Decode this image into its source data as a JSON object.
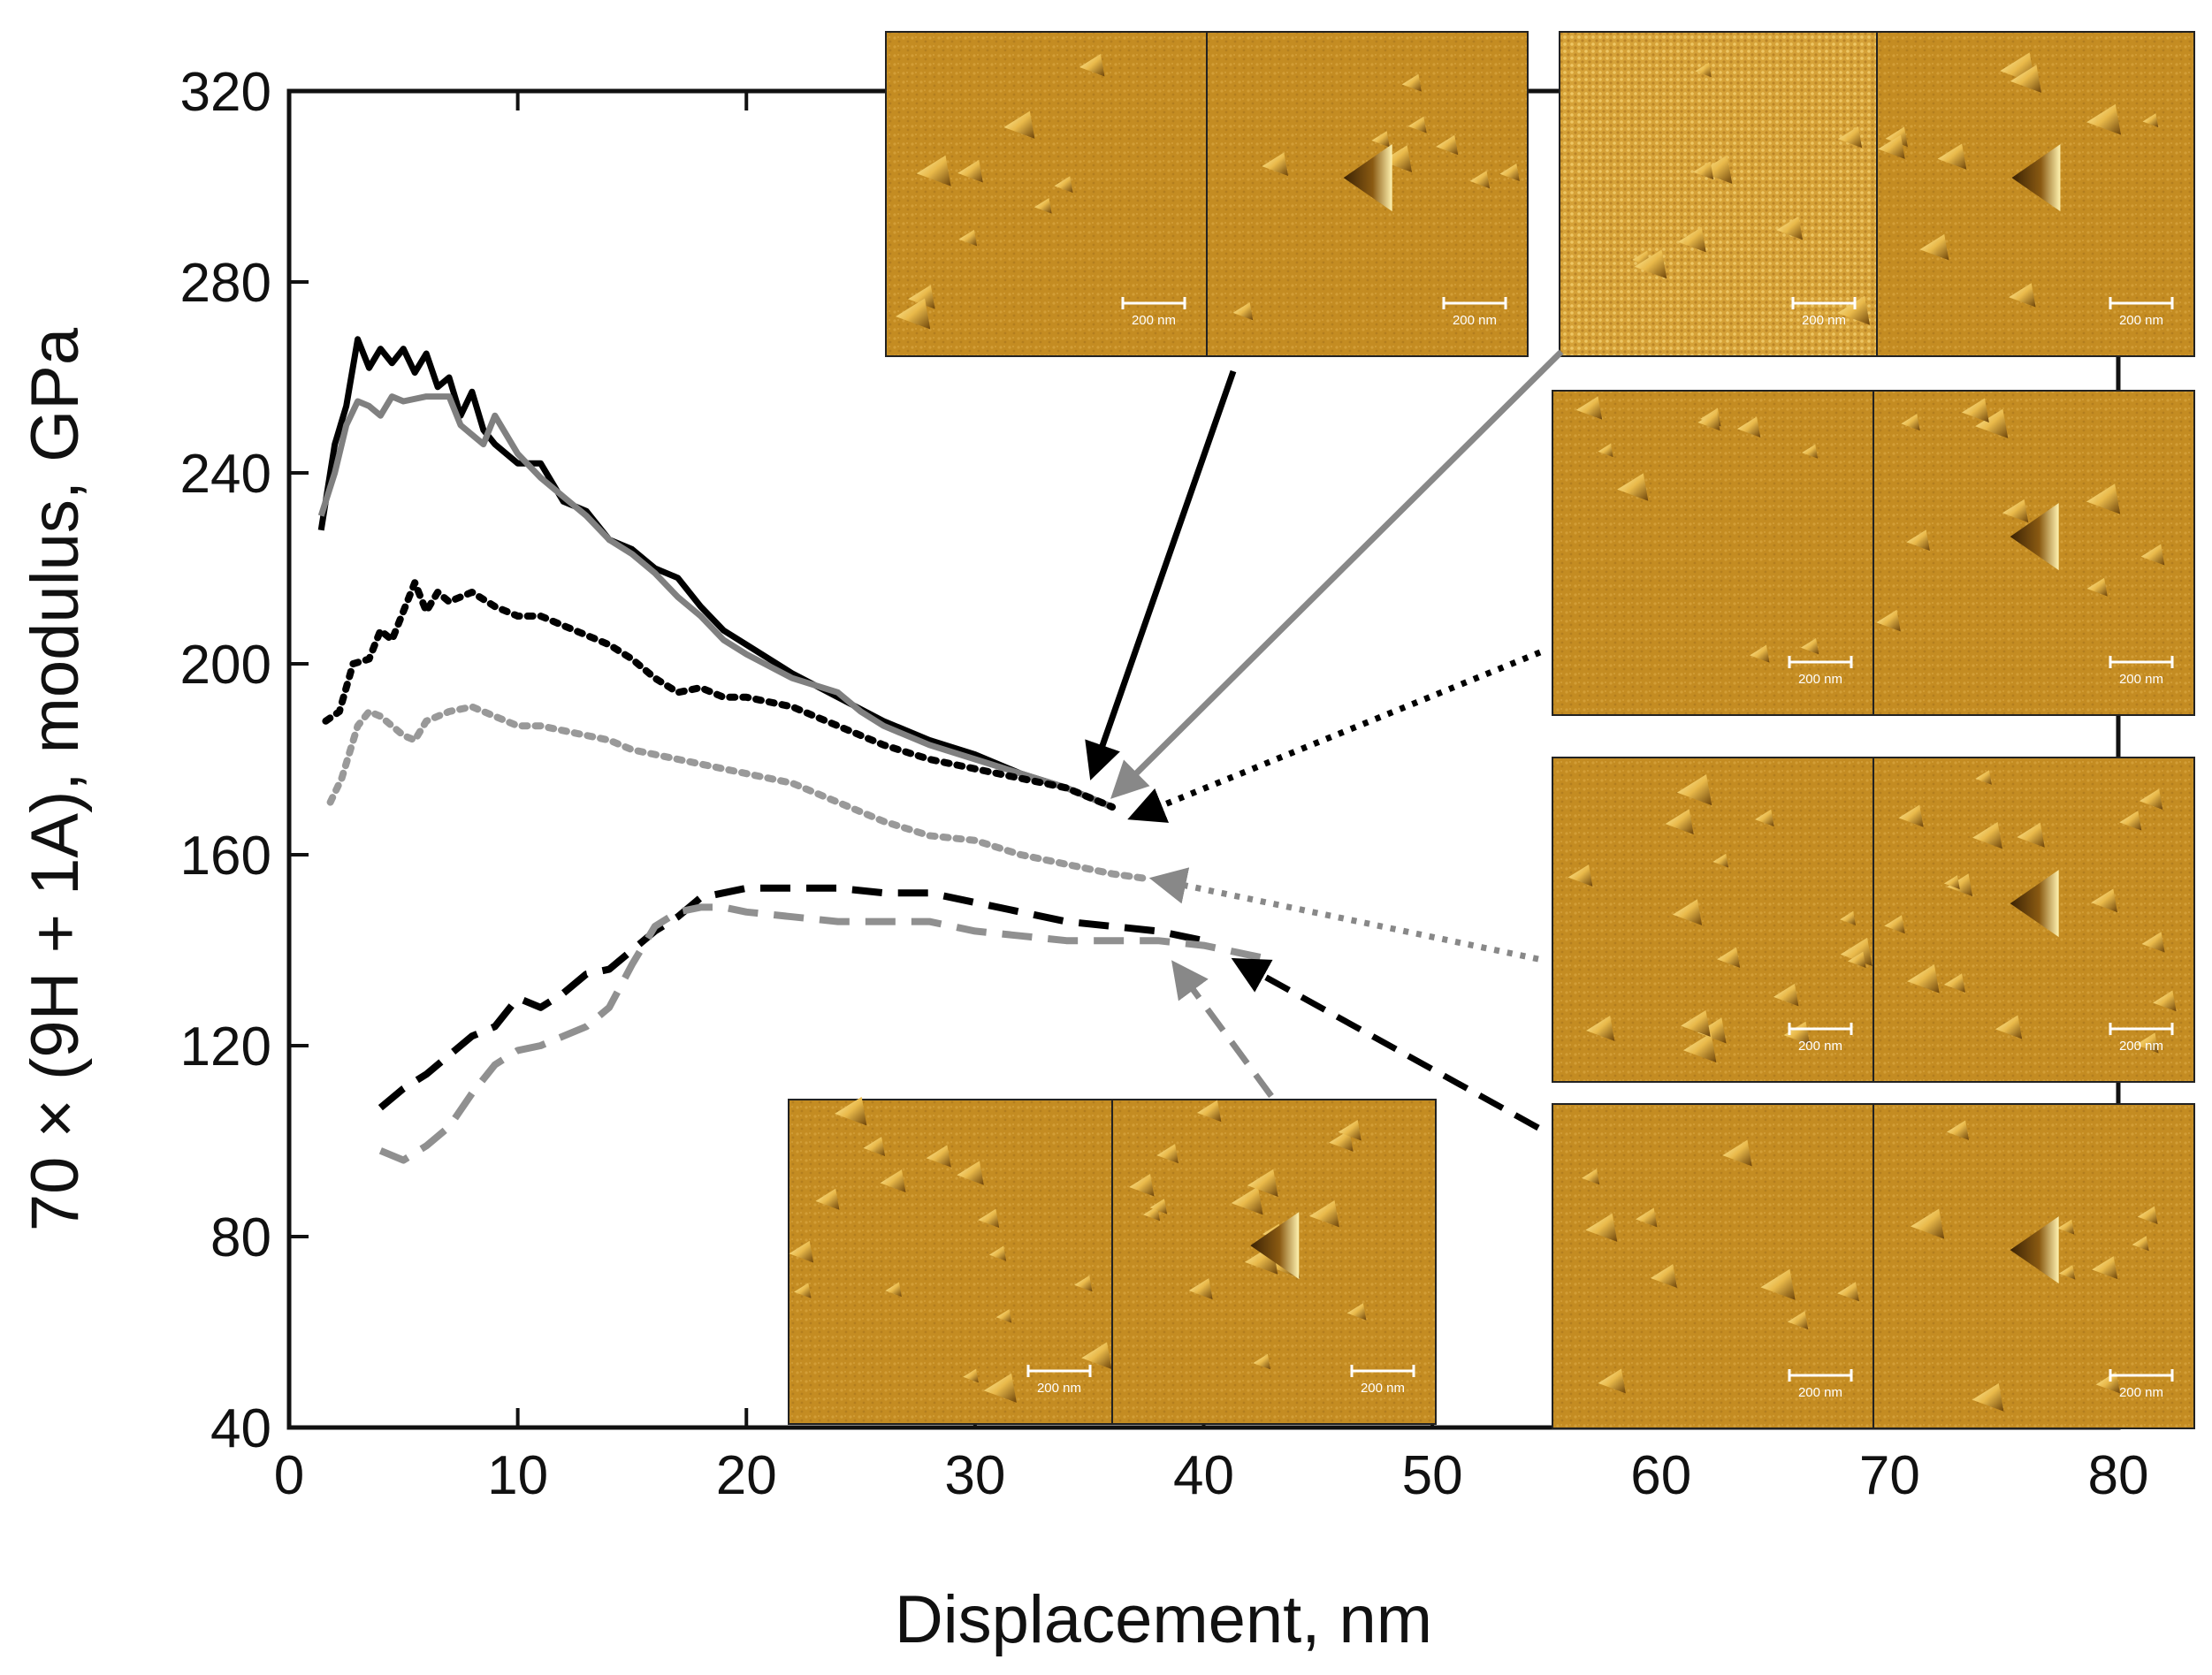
{
  "chart_data": {
    "type": "line",
    "title": "",
    "xlabel": "Displacement, nm",
    "ylabel": "70 × (9H + 1A), modulus, GPa",
    "xlim": [
      0,
      80
    ],
    "ylim": [
      40,
      320
    ],
    "xticks": [
      0,
      10,
      20,
      30,
      40,
      50,
      60,
      70,
      80
    ],
    "yticks": [
      40,
      80,
      120,
      160,
      200,
      240,
      280,
      320
    ],
    "grid": false,
    "series": [
      {
        "name": "solid black",
        "color": "#000000",
        "dash": "solid",
        "points": [
          [
            1.4,
            228
          ],
          [
            2,
            246
          ],
          [
            2.5,
            254
          ],
          [
            3,
            268
          ],
          [
            3.5,
            262
          ],
          [
            4,
            266
          ],
          [
            4.5,
            263
          ],
          [
            5,
            266
          ],
          [
            5.5,
            261
          ],
          [
            6,
            265
          ],
          [
            6.5,
            258
          ],
          [
            7,
            260
          ],
          [
            7.5,
            252
          ],
          [
            8,
            257
          ],
          [
            8.5,
            249
          ],
          [
            9,
            246
          ],
          [
            10,
            242
          ],
          [
            11,
            242
          ],
          [
            12,
            234
          ],
          [
            13,
            232
          ],
          [
            14,
            226
          ],
          [
            15,
            224
          ],
          [
            16,
            220
          ],
          [
            17,
            218
          ],
          [
            18,
            212
          ],
          [
            19,
            207
          ],
          [
            20,
            204
          ],
          [
            22,
            198
          ],
          [
            24,
            193
          ],
          [
            26,
            188
          ],
          [
            28,
            184
          ],
          [
            30,
            181
          ],
          [
            32,
            177
          ],
          [
            34,
            174
          ],
          [
            36,
            170
          ]
        ]
      },
      {
        "name": "solid gray",
        "color": "#808080",
        "dash": "solid",
        "points": [
          [
            1.4,
            231
          ],
          [
            2,
            240
          ],
          [
            2.5,
            250
          ],
          [
            3,
            255
          ],
          [
            3.5,
            254
          ],
          [
            4,
            252
          ],
          [
            4.5,
            256
          ],
          [
            5,
            255
          ],
          [
            6,
            256
          ],
          [
            7,
            256
          ],
          [
            7.5,
            250
          ],
          [
            8,
            248
          ],
          [
            8.5,
            246
          ],
          [
            9,
            252
          ],
          [
            10,
            244
          ],
          [
            11,
            239
          ],
          [
            12,
            235
          ],
          [
            13,
            231
          ],
          [
            14,
            226
          ],
          [
            15,
            223
          ],
          [
            16,
            219
          ],
          [
            17,
            214
          ],
          [
            18,
            210
          ],
          [
            19,
            205
          ],
          [
            20,
            202
          ],
          [
            22,
            197
          ],
          [
            24,
            194
          ],
          [
            25,
            190
          ],
          [
            26,
            187
          ],
          [
            28,
            183
          ],
          [
            30,
            180
          ],
          [
            32,
            177
          ],
          [
            34,
            174
          ],
          [
            36,
            170
          ]
        ]
      },
      {
        "name": "dotted black",
        "color": "#000000",
        "dash": "dotted",
        "points": [
          [
            1.6,
            188
          ],
          [
            2.2,
            190
          ],
          [
            2.8,
            200
          ],
          [
            3.5,
            201
          ],
          [
            4,
            207
          ],
          [
            4.5,
            205
          ],
          [
            5,
            211
          ],
          [
            5.5,
            217
          ],
          [
            6,
            211
          ],
          [
            6.5,
            215
          ],
          [
            7,
            213
          ],
          [
            8,
            215
          ],
          [
            9,
            212
          ],
          [
            10,
            210
          ],
          [
            11,
            210
          ],
          [
            12,
            208
          ],
          [
            13,
            206
          ],
          [
            14,
            204
          ],
          [
            15,
            201
          ],
          [
            16,
            197
          ],
          [
            17,
            194
          ],
          [
            18,
            195
          ],
          [
            19,
            193
          ],
          [
            20,
            193
          ],
          [
            22,
            191
          ],
          [
            24,
            187
          ],
          [
            26,
            183
          ],
          [
            28,
            180
          ],
          [
            30,
            178
          ],
          [
            32,
            176
          ],
          [
            34,
            174
          ],
          [
            36,
            170
          ]
        ]
      },
      {
        "name": "dotted gray",
        "color": "#999999",
        "dash": "dotted",
        "points": [
          [
            1.8,
            171
          ],
          [
            2.3,
            176
          ],
          [
            3,
            187
          ],
          [
            3.5,
            190
          ],
          [
            4,
            189
          ],
          [
            4.5,
            187
          ],
          [
            5,
            185
          ],
          [
            5.5,
            184
          ],
          [
            6,
            188
          ],
          [
            7,
            190
          ],
          [
            8,
            191
          ],
          [
            9,
            189
          ],
          [
            10,
            187
          ],
          [
            11,
            187
          ],
          [
            12,
            186
          ],
          [
            13,
            185
          ],
          [
            14,
            184
          ],
          [
            15,
            182
          ],
          [
            16,
            181
          ],
          [
            17,
            180
          ],
          [
            18,
            179
          ],
          [
            19,
            178
          ],
          [
            20,
            177
          ],
          [
            22,
            175
          ],
          [
            24,
            171
          ],
          [
            26,
            167
          ],
          [
            28,
            164
          ],
          [
            30,
            163
          ],
          [
            32,
            160
          ],
          [
            34,
            158
          ],
          [
            36,
            156
          ],
          [
            37.5,
            155
          ]
        ]
      },
      {
        "name": "dashed black",
        "color": "#000000",
        "dash": "dashed",
        "points": [
          [
            4,
            107
          ],
          [
            5,
            111
          ],
          [
            6,
            114
          ],
          [
            7,
            118
          ],
          [
            8,
            122
          ],
          [
            9,
            124
          ],
          [
            10,
            130
          ],
          [
            11,
            128
          ],
          [
            12,
            131
          ],
          [
            13,
            135
          ],
          [
            14,
            136
          ],
          [
            15,
            140
          ],
          [
            16,
            144
          ],
          [
            17,
            147
          ],
          [
            18,
            151
          ],
          [
            19,
            152
          ],
          [
            20,
            153
          ],
          [
            22,
            153
          ],
          [
            24,
            153
          ],
          [
            26,
            152
          ],
          [
            28,
            152
          ],
          [
            30,
            150
          ],
          [
            32,
            148
          ],
          [
            34,
            146
          ],
          [
            36,
            145
          ],
          [
            38,
            144
          ],
          [
            40,
            142
          ]
        ]
      },
      {
        "name": "dashed gray",
        "color": "#909090",
        "dash": "dashed",
        "points": [
          [
            4,
            98
          ],
          [
            5,
            96
          ],
          [
            6,
            99
          ],
          [
            7,
            103
          ],
          [
            8,
            110
          ],
          [
            9,
            116
          ],
          [
            10,
            119
          ],
          [
            11,
            120
          ],
          [
            12,
            122
          ],
          [
            13,
            124
          ],
          [
            14,
            128
          ],
          [
            15,
            137
          ],
          [
            16,
            145
          ],
          [
            17,
            148
          ],
          [
            18,
            149
          ],
          [
            19,
            149
          ],
          [
            20,
            148
          ],
          [
            22,
            147
          ],
          [
            24,
            146
          ],
          [
            26,
            146
          ],
          [
            28,
            146
          ],
          [
            30,
            144
          ],
          [
            32,
            143
          ],
          [
            34,
            142
          ],
          [
            36,
            142
          ],
          [
            38,
            142
          ],
          [
            40,
            141
          ],
          [
            42,
            139
          ],
          [
            43,
            138
          ]
        ]
      }
    ],
    "insets": [
      {
        "id": "top-left",
        "linked_series": "solid black",
        "scale_left": "200 nm",
        "scale_right": "200 nm"
      },
      {
        "id": "top-right",
        "linked_series": "solid gray",
        "scale_left": "200 nm",
        "scale_right": "200 nm"
      },
      {
        "id": "mid-right-1",
        "linked_series": "dotted black",
        "scale_left": "200 nm",
        "scale_right": "200 nm"
      },
      {
        "id": "mid-right-2",
        "linked_series": "dotted gray",
        "scale_left": "200 nm",
        "scale_right": "200 nm"
      },
      {
        "id": "bottom-right",
        "linked_series": "dashed black",
        "scale_left": "200 nm",
        "scale_right": "200 nm"
      },
      {
        "id": "bottom-center",
        "linked_series": "dashed gray",
        "scale_left": "200 nm",
        "scale_right": "200 nm"
      }
    ]
  },
  "colors": {
    "afm_base": "#c28a1e",
    "afm_light": "#f2d778",
    "afm_dark": "#5e3a08",
    "axis": "#111111"
  }
}
